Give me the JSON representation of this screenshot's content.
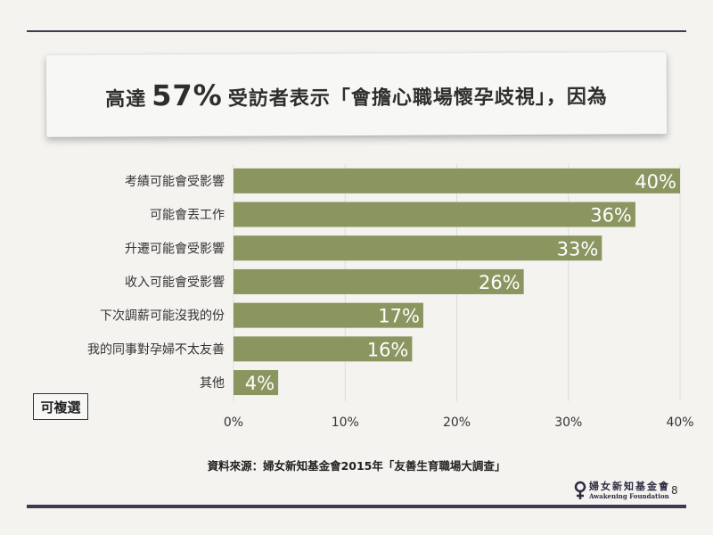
{
  "title": {
    "prefix": "高達",
    "highlight": "57%",
    "suffix": "受訪者表示「會擔心職場懷孕歧視」，因為"
  },
  "badge": "可複選",
  "source": "資料來源：婦女新知基金會2015年「友善生育職場大調查」",
  "logo": {
    "zh": "婦女新知基金會",
    "en": "Awakening Foundation"
  },
  "page_number": "8",
  "colors": {
    "bar": "#8a9560",
    "rule": "#3f3a52",
    "grid": "#dcdcd8",
    "label_text": "#ffffff"
  },
  "chart_data": {
    "type": "bar",
    "orientation": "horizontal",
    "categories": [
      "考績可能會受影響",
      "可能會丟工作",
      "升遷可能會受影響",
      "收入可能會受影響",
      "下次調薪可能沒我的份",
      "我的同事對孕婦不太友善",
      "其他"
    ],
    "values": [
      40,
      36,
      33,
      26,
      17,
      16,
      4
    ],
    "value_labels": [
      "40%",
      "36%",
      "33%",
      "26%",
      "17%",
      "16%",
      "4%"
    ],
    "xlim": [
      0,
      40
    ],
    "x_ticks": [
      0,
      10,
      20,
      30,
      40
    ],
    "x_tick_labels": [
      "0%",
      "10%",
      "20%",
      "30%",
      "40%"
    ],
    "grid": true
  }
}
